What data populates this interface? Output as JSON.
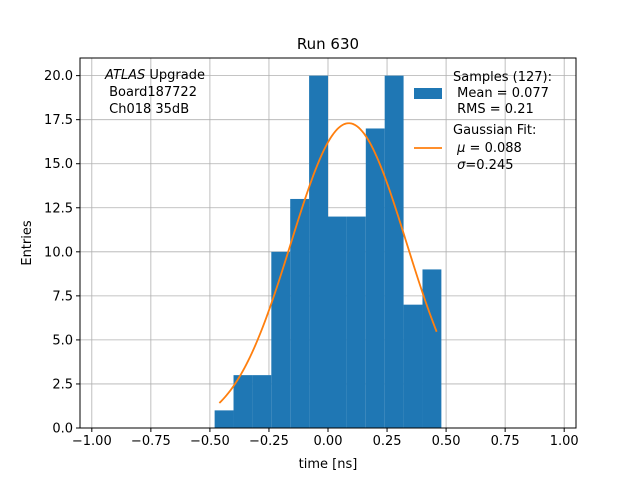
{
  "chart_data": {
    "type": "bar",
    "title": "Run 630",
    "xlabel": "time [ns]",
    "ylabel": "Entries",
    "xlim": [
      -1.05,
      1.05
    ],
    "ylim": [
      0,
      21
    ],
    "grid": true,
    "x_ticks": [
      -1.0,
      -0.75,
      -0.5,
      -0.25,
      0.0,
      0.25,
      0.5,
      0.75,
      1.0
    ],
    "x_tick_labels": [
      "−1.00",
      "−0.75",
      "−0.50",
      "−0.25",
      "0.00",
      "0.25",
      "0.50",
      "0.75",
      "1.00"
    ],
    "y_ticks": [
      0,
      2.5,
      5,
      7.5,
      10,
      12.5,
      15,
      17.5,
      20
    ],
    "y_tick_labels": [
      "0.0",
      "2.5",
      "5.0",
      "7.5",
      "10.0",
      "12.5",
      "15.0",
      "17.5",
      "20.0"
    ],
    "histogram": {
      "color": "#1f77b4",
      "bin_edges": [
        -0.48,
        -0.4,
        -0.32,
        -0.24,
        -0.16,
        -0.08,
        0.0,
        0.08,
        0.16,
        0.24,
        0.32,
        0.4,
        0.48
      ],
      "counts": [
        1,
        3,
        3,
        10,
        13,
        20,
        12,
        12,
        17,
        20,
        7,
        9
      ]
    },
    "fit": {
      "color": "#ff7f0e",
      "mu": 0.088,
      "sigma": 0.245,
      "amplitude": 17.3,
      "x_range": [
        -0.46,
        0.46
      ]
    },
    "annotation": {
      "italic": "ATLAS",
      "rest": " Upgrade",
      "line2": " Board187722",
      "line3": " Ch018 35dB"
    },
    "legend": {
      "position": "top-right",
      "samples": {
        "line1": "Samples (127):",
        "line2": " Mean = 0.077",
        "line3": " RMS = 0.21"
      },
      "fit": {
        "line1": "Gaussian Fit:",
        "line2_sym": "μ",
        "line2_rest": " = 0.088",
        "line3_sym": "σ",
        "line3_rest": "=0.245"
      }
    }
  }
}
